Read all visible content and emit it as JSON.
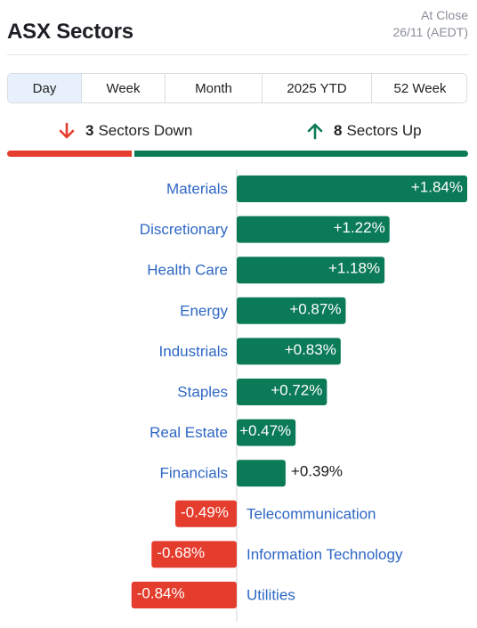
{
  "header": {
    "title": "ASX Sectors",
    "status_line1": "At Close",
    "status_line2": "26/11 (AEDT)"
  },
  "tabs": [
    {
      "label": "Day",
      "active": true
    },
    {
      "label": "Week",
      "active": false
    },
    {
      "label": "Month",
      "active": false
    },
    {
      "label": "2025 YTD",
      "active": false
    },
    {
      "label": "52 Week",
      "active": false
    }
  ],
  "summary": {
    "down_count": "3",
    "down_label": "Sectors Down",
    "up_count": "8",
    "up_label": "Sectors Up",
    "down_icon": "arrow-down-icon",
    "up_icon": "arrow-up-icon"
  },
  "colors": {
    "up": "#0b7a57",
    "down": "#e43d2d",
    "label": "#2e67c4",
    "axis": "#d0d4d9"
  },
  "chart_data": {
    "type": "bar",
    "orientation": "horizontal",
    "categories": [
      "Materials",
      "Discretionary",
      "Health Care",
      "Energy",
      "Industrials",
      "Staples",
      "Real Estate",
      "Financials",
      "Telecommunication",
      "Information Technology",
      "Utilities"
    ],
    "values": [
      1.84,
      1.22,
      1.18,
      0.87,
      0.83,
      0.72,
      0.47,
      0.39,
      -0.49,
      -0.68,
      -0.84
    ],
    "value_labels": [
      "+1.84%",
      "+1.22%",
      "+1.18%",
      "+0.87%",
      "+0.83%",
      "+0.72%",
      "+0.47%",
      "+0.39%",
      "-0.49%",
      "-0.68%",
      "-0.84%"
    ],
    "unit": "%"
  }
}
